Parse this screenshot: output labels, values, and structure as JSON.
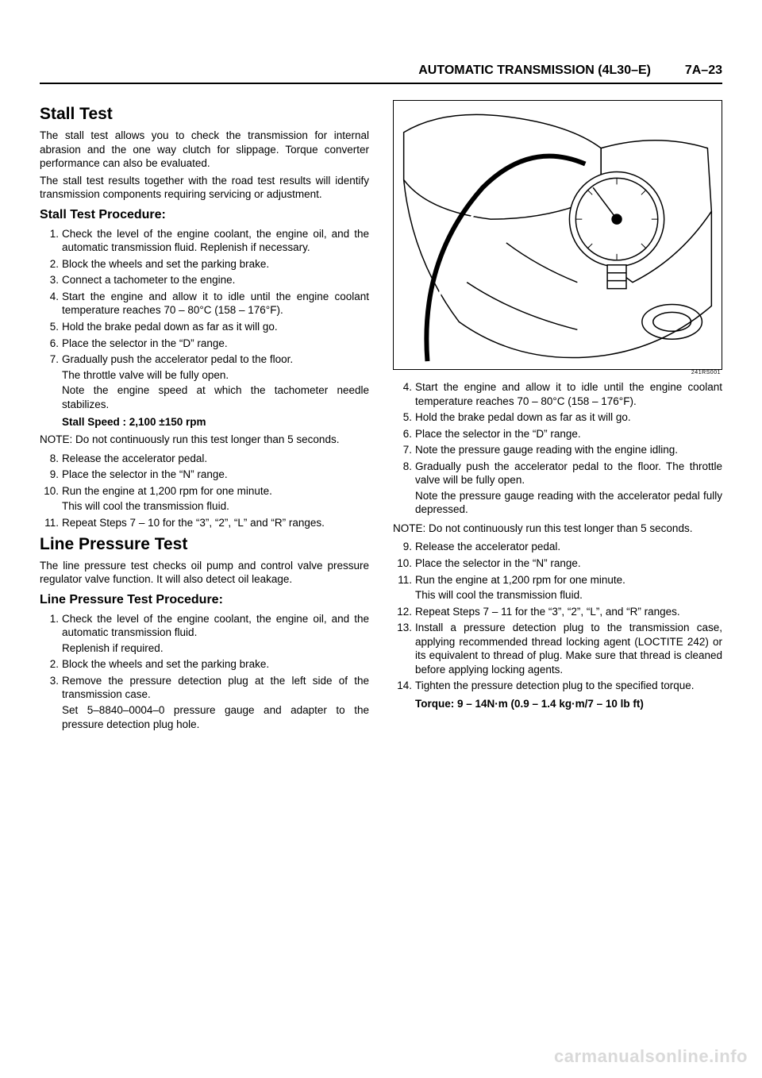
{
  "header": {
    "title": "AUTOMATIC TRANSMISSION (4L30–E)",
    "page_number": "7A–23"
  },
  "left_col": {
    "section1": {
      "title": "Stall Test",
      "intro1": "The stall test allows you to check the transmission for internal abrasion and the one way clutch for slippage. Torque converter performance can also be evaluated.",
      "intro2": "The stall test results together with the road test results will identify transmission components requiring servicing or adjustment.",
      "sub_title": "Stall Test Procedure:",
      "steps": [
        {
          "n": "1.",
          "text": "Check the level of the engine coolant, the engine oil, and the automatic transmission fluid. Replenish if necessary."
        },
        {
          "n": "2.",
          "text": "Block the wheels and set the parking brake."
        },
        {
          "n": "3.",
          "text": "Connect a tachometer to the engine."
        },
        {
          "n": "4.",
          "text": "Start the engine and allow it to idle until the engine coolant temperature reaches 70 – 80°C (158 – 176°F)."
        },
        {
          "n": "5.",
          "text": "Hold the brake pedal down as far as it will go."
        },
        {
          "n": "6.",
          "text": "Place the selector in the “D” range."
        },
        {
          "n": "7.",
          "text": "Gradually push the accelerator pedal to the floor.",
          "subs": [
            "The throttle valve will be fully open.",
            "Note the engine speed at which the tachometer needle stabilizes."
          ]
        }
      ],
      "spec": "Stall Speed : 2,100 ±150 rpm",
      "note": "NOTE: Do not continuously run this test longer than 5 seconds.",
      "steps2": [
        {
          "n": "8.",
          "text": "Release the accelerator pedal."
        },
        {
          "n": "9.",
          "text": "Place the selector in the “N” range."
        },
        {
          "n": "10.",
          "text": "Run the engine at 1,200 rpm for one minute.",
          "subs": [
            "This will cool the transmission fluid."
          ]
        },
        {
          "n": "11.",
          "text": "Repeat Steps 7 – 10 for the “3”, “2”, “L” and “R” ranges."
        }
      ]
    },
    "section2": {
      "title": "Line Pressure Test",
      "intro": "The line pressure test checks oil pump and control valve pressure regulator valve function. It will also detect oil leakage.",
      "sub_title": "Line Pressure Test Procedure:",
      "steps": [
        {
          "n": "1.",
          "text": "Check the level of the engine coolant, the engine oil, and the automatic transmission fluid.",
          "subs": [
            "Replenish if required."
          ]
        },
        {
          "n": "2.",
          "text": "Block the wheels and set the parking brake."
        },
        {
          "n": "3.",
          "text": "Remove the pressure detection plug at the left side of the transmission case.",
          "subs": [
            "Set 5–8840–0004–0 pressure gauge and adapter to the pressure detection plug hole."
          ]
        }
      ]
    }
  },
  "right_col": {
    "figure_caption": "241RS001",
    "steps": [
      {
        "n": "4.",
        "text": "Start the engine and allow it to idle until the engine coolant temperature reaches 70 – 80°C (158 – 176°F)."
      },
      {
        "n": "5.",
        "text": "Hold the brake pedal down as far as it will go."
      },
      {
        "n": "6.",
        "text": "Place the selector in the “D” range."
      },
      {
        "n": "7.",
        "text": "Note the pressure gauge reading with the engine idling."
      },
      {
        "n": "8.",
        "text": "Gradually push the accelerator pedal to the floor. The throttle valve will be fully open.",
        "subs": [
          "Note the pressure gauge reading with the accelerator pedal fully depressed."
        ]
      }
    ],
    "note": "NOTE: Do not continuously run this test longer than 5 seconds.",
    "steps2": [
      {
        "n": "9.",
        "text": "Release the accelerator pedal."
      },
      {
        "n": "10.",
        "text": "Place the selector in the “N” range."
      },
      {
        "n": "11.",
        "text": "Run the engine at 1,200 rpm for one minute.",
        "subs": [
          "This will cool the transmission fluid."
        ]
      },
      {
        "n": "12.",
        "text": "Repeat Steps 7 – 11 for the “3”, “2”, “L”, and “R” ranges."
      },
      {
        "n": "13.",
        "text": "Install a pressure detection plug to the transmission case, applying recommended thread locking agent (LOCTITE 242) or its equivalent to thread of plug. Make sure that thread is cleaned before applying locking agents."
      },
      {
        "n": "14.",
        "text": "Tighten the pressure detection plug to the specified torque."
      }
    ],
    "torque": "Torque: 9 – 14N·m (0.9 – 1.4 kg·m/7 – 10 lb ft)"
  },
  "watermark": "carmanualsonline.info"
}
